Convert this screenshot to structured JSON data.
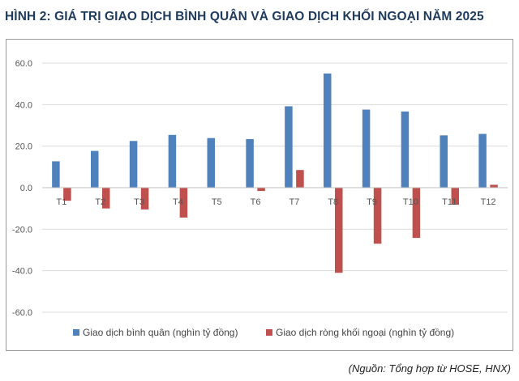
{
  "title": "HÌNH 2: GIÁ TRỊ GIAO DỊCH BÌNH QUÂN VÀ GIAO DỊCH KHỐI NGOẠI NĂM 2025",
  "source": "(Nguồn: Tổng hợp từ HOSE, HNX)",
  "chart_data": {
    "type": "bar",
    "title": "",
    "xlabel": "",
    "ylabel": "",
    "categories": [
      "T1",
      "T2",
      "T3",
      "T4",
      "T5",
      "T6",
      "T7",
      "T8",
      "T9",
      "T10",
      "T11",
      "T12"
    ],
    "series": [
      {
        "name": "Giao dịch bình quân (nghìn tỷ đồng)",
        "color": "#4f81bd",
        "values": [
          12.7,
          17.7,
          22.5,
          25.4,
          23.9,
          23.4,
          39.2,
          55.0,
          37.6,
          36.7,
          25.2,
          25.9
        ]
      },
      {
        "name": "Giao dịch ròng khối ngoại (nghìn tỷ đồng)",
        "color": "#c0504d",
        "values": [
          -6.3,
          -10.0,
          -10.5,
          -14.4,
          0.0,
          -1.6,
          8.5,
          -41.0,
          -27.0,
          -24.2,
          -8.2,
          1.4
        ]
      }
    ],
    "ylim": [
      -60,
      60
    ],
    "yticks": [
      60,
      40,
      20,
      0,
      -20,
      -40,
      -60
    ],
    "ytick_labels": [
      "60.0",
      "40.0",
      "20.0",
      "0.0",
      "-20.0",
      "-40.0",
      "-60.0"
    ],
    "grid": true,
    "legend_position": "bottom"
  }
}
